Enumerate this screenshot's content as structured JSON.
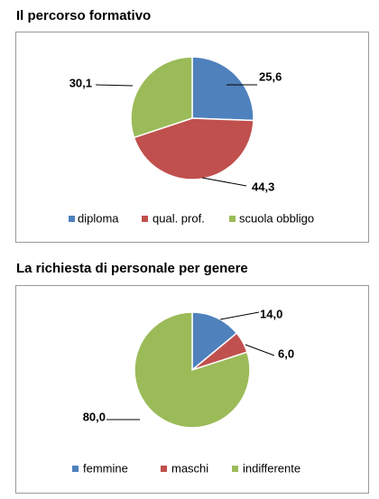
{
  "chart_data": [
    {
      "type": "pie",
      "title": "Il percorso formativo",
      "categories": [
        "diploma",
        "qual. prof.",
        "scuola obbligo"
      ],
      "values": [
        25.6,
        44.3,
        30.1
      ],
      "value_labels": [
        "25,6",
        "44,3",
        "30,1"
      ],
      "colors": [
        "#4f81bd",
        "#c0504d",
        "#9bbb59"
      ],
      "legend_position": "bottom"
    },
    {
      "type": "pie",
      "title": "La richiesta di personale per genere",
      "categories": [
        "femmine",
        "maschi",
        "indifferente"
      ],
      "values": [
        14.0,
        6.0,
        80.0
      ],
      "value_labels": [
        "14,0",
        "6,0",
        "80,0"
      ],
      "colors": [
        "#4f81bd",
        "#c0504d",
        "#9bbb59"
      ],
      "legend_position": "bottom"
    }
  ]
}
